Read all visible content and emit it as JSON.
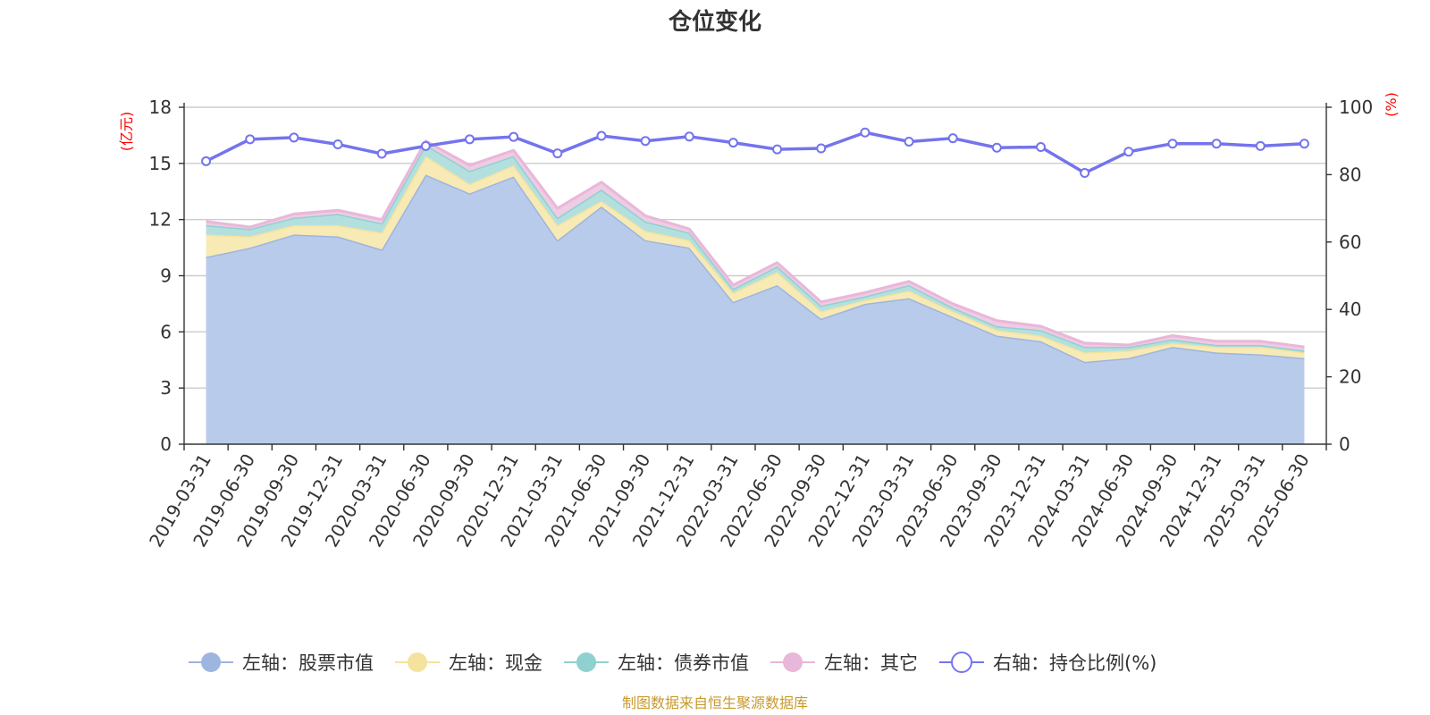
{
  "chart_data": {
    "type": "area",
    "title": "仓位变化",
    "left_unit": "(亿元)",
    "right_unit": "(%)",
    "left_ylim": [
      0,
      18
    ],
    "left_ticks": [
      "0",
      "3",
      "6",
      "9",
      "12",
      "15",
      "18"
    ],
    "right_ylim": [
      0,
      100
    ],
    "right_ticks": [
      "0",
      "20",
      "40",
      "60",
      "80",
      "100"
    ],
    "grid": true,
    "legend_position": "bottom",
    "categories": [
      "2019-03-31",
      "2019-06-30",
      "2019-09-30",
      "2019-12-31",
      "2020-03-31",
      "2020-06-30",
      "2020-09-30",
      "2020-12-31",
      "2021-03-31",
      "2021-06-30",
      "2021-09-30",
      "2021-12-31",
      "2022-03-31",
      "2022-06-30",
      "2022-09-30",
      "2022-12-31",
      "2023-03-31",
      "2023-06-30",
      "2023-09-30",
      "2023-12-31",
      "2024-03-31",
      "2024-06-30",
      "2024-09-30",
      "2024-12-31",
      "2025-03-31",
      "2025-06-30"
    ],
    "series": [
      {
        "name": "左轴：股票市值",
        "axis": "left",
        "kind": "stacked-area",
        "color": "#9db5df",
        "fill": "#b9cbea",
        "values": [
          10.0,
          10.5,
          11.2,
          11.1,
          10.4,
          14.4,
          13.4,
          14.3,
          10.9,
          12.7,
          10.9,
          10.5,
          7.6,
          8.5,
          6.7,
          7.5,
          7.8,
          6.8,
          5.8,
          5.5,
          4.4,
          4.6,
          5.2,
          4.9,
          4.8,
          4.6
        ]
      },
      {
        "name": "左轴：现金",
        "axis": "left",
        "kind": "stacked-area",
        "color": "#f5e29c",
        "fill": "#f7eab5",
        "values": [
          1.2,
          0.6,
          0.5,
          0.6,
          0.9,
          1.0,
          0.5,
          0.6,
          0.8,
          0.3,
          0.5,
          0.4,
          0.5,
          0.7,
          0.4,
          0.2,
          0.4,
          0.3,
          0.3,
          0.3,
          0.5,
          0.4,
          0.2,
          0.3,
          0.4,
          0.3
        ]
      },
      {
        "name": "左轴：债券市值",
        "axis": "left",
        "kind": "stacked-area",
        "color": "#8fd1cf",
        "fill": "#b3e0df",
        "values": [
          0.5,
          0.4,
          0.4,
          0.6,
          0.5,
          0.6,
          0.7,
          0.5,
          0.4,
          0.6,
          0.5,
          0.4,
          0.2,
          0.3,
          0.3,
          0.2,
          0.3,
          0.2,
          0.2,
          0.3,
          0.3,
          0.2,
          0.2,
          0.1,
          0.1,
          0.1
        ]
      },
      {
        "name": "左轴：其它",
        "axis": "left",
        "kind": "stacked-area",
        "color": "#e8b7d9",
        "fill": "#efcbe4",
        "values": [
          0.2,
          0.1,
          0.2,
          0.2,
          0.2,
          0.2,
          0.3,
          0.3,
          0.5,
          0.4,
          0.3,
          0.2,
          0.2,
          0.2,
          0.2,
          0.2,
          0.2,
          0.2,
          0.3,
          0.2,
          0.2,
          0.1,
          0.2,
          0.2,
          0.2,
          0.2
        ]
      },
      {
        "name": "右轴：持仓比例(%)",
        "axis": "right",
        "kind": "line",
        "color": "#7474ee",
        "values": [
          84.0,
          90.5,
          91.0,
          89.0,
          86.2,
          88.5,
          90.5,
          91.2,
          86.3,
          91.5,
          90.0,
          91.3,
          89.5,
          87.5,
          87.8,
          92.5,
          89.8,
          90.8,
          88.0,
          88.2,
          80.5,
          86.8,
          89.2,
          89.2,
          88.5,
          89.2
        ]
      }
    ]
  },
  "footer": {
    "source": "制图数据来自恒生聚源数据库"
  }
}
